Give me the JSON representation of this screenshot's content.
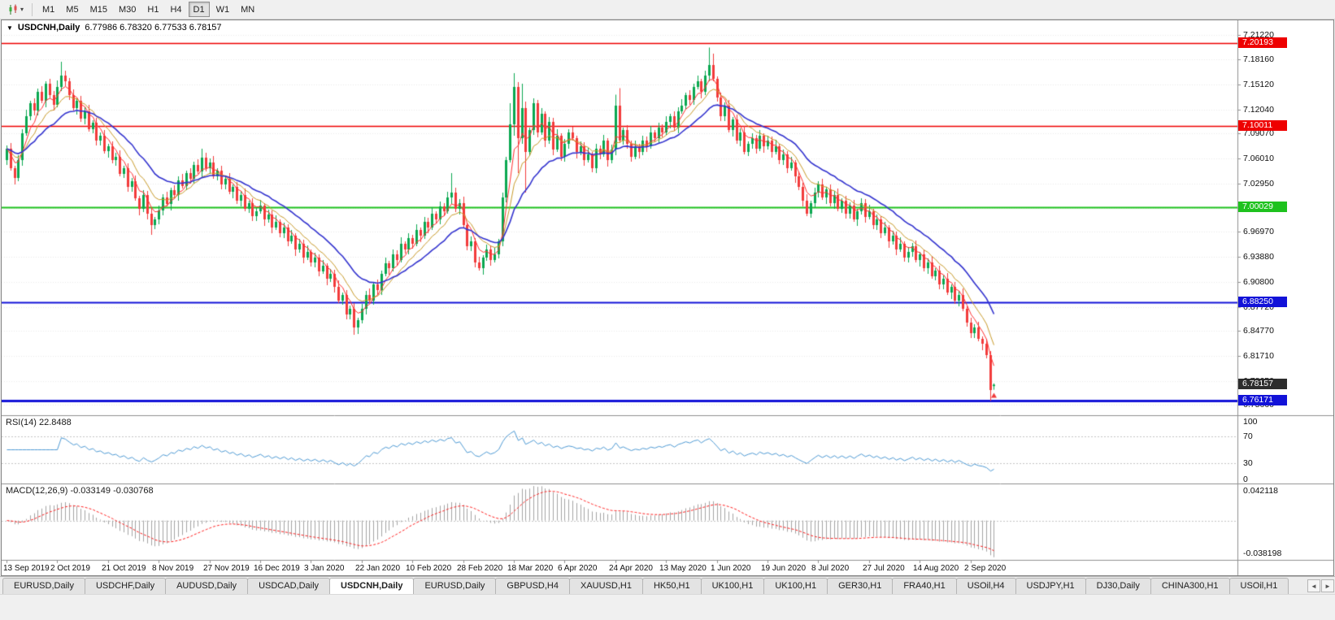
{
  "toolbar": {
    "dropdown_caret": "▾",
    "timeframes": [
      "M1",
      "M5",
      "M15",
      "M30",
      "H1",
      "H4",
      "D1",
      "W1",
      "MN"
    ],
    "active_timeframe": "D1"
  },
  "chart_header": {
    "caret": "▼",
    "symbol": "USDCNH,Daily",
    "ohlc_text": "6.77986 6.78320 6.77533 6.78157"
  },
  "rsi_panel": {
    "label": "RSI(14) 22.8488",
    "period": 14,
    "current_value": 22.8488,
    "scale_labels": [
      "100",
      "70",
      "30",
      "0"
    ],
    "level_lines": [
      70,
      30
    ],
    "line_color": "#4f9bd5"
  },
  "macd_panel": {
    "label": "MACD(12,26,9) -0.033149 -0.030768",
    "params": [
      12,
      26,
      9
    ],
    "values_text": "-0.033149 -0.030768",
    "scale_top": "0.042118",
    "scale_bottom": "-0.038198",
    "hist_color": "#a3a3a3",
    "signal_color": "#ff2020"
  },
  "tabs": {
    "items": [
      "EURUSD,Daily",
      "USDCHF,Daily",
      "AUDUSD,Daily",
      "USDCAD,Daily",
      "USDCNH,Daily",
      "EURUSD,Daily",
      "GBPUSD,H4",
      "XAUUSD,H1",
      "HK50,H1",
      "UK100,H1",
      "UK100,H1",
      "GER30,H1",
      "FRA40,H1",
      "USOil,H4",
      "USDJPY,H1",
      "DJ30,Daily",
      "CHINA300,H1",
      "USOil,H1"
    ],
    "active_index": 4,
    "scroll_left": "◄",
    "scroll_right": "►"
  },
  "chart_data": {
    "type": "candlestick",
    "symbol": "USDCNH",
    "timeframe": "Daily",
    "y_axis_labels": [
      "7.21220",
      "7.18160",
      "7.15120",
      "7.12040",
      "7.09070",
      "7.06010",
      "7.02950",
      "6.99890",
      "6.96970",
      "6.93880",
      "6.90800",
      "6.87720",
      "6.84770",
      "6.81710",
      "6.78650",
      "6.75660"
    ],
    "x_axis_labels": [
      "13 Sep 2019",
      "2 Oct 2019",
      "21 Oct 2019",
      "8 Nov 2019",
      "27 Nov 2019",
      "16 Dec 2019",
      "3 Jan 2020",
      "22 Jan 2020",
      "10 Feb 2020",
      "28 Feb 2020",
      "18 Mar 2020",
      "6 Apr 2020",
      "24 Apr 2020",
      "13 May 2020",
      "1 Jun 2020",
      "19 Jun 2020",
      "8 Jul 2020",
      "27 Jul 2020",
      "14 Aug 2020",
      "2 Sep 2020"
    ],
    "x_label_every_n_candles": 13,
    "y_range": [
      6.746,
      7.228
    ],
    "first_open": 7.058,
    "closes": [
      7.072,
      7.048,
      7.036,
      7.058,
      7.091,
      7.112,
      7.128,
      7.119,
      7.142,
      7.131,
      7.152,
      7.138,
      7.126,
      7.148,
      7.162,
      7.155,
      7.138,
      7.122,
      7.131,
      7.109,
      7.118,
      7.096,
      7.104,
      7.082,
      7.088,
      7.069,
      7.075,
      7.058,
      7.062,
      7.041,
      7.048,
      7.025,
      7.032,
      7.011,
      6.998,
      7.015,
      6.992,
      6.978,
      6.985,
      6.996,
      7.012,
      7.004,
      7.021,
      7.015,
      7.033,
      7.026,
      7.042,
      7.035,
      7.052,
      7.044,
      7.061,
      7.048,
      7.055,
      7.038,
      7.045,
      7.028,
      7.035,
      7.019,
      7.025,
      7.008,
      7.015,
      6.998,
      7.005,
      6.989,
      6.995,
      7.002,
      6.985,
      6.991,
      6.975,
      6.982,
      6.968,
      6.975,
      6.958,
      6.965,
      6.948,
      6.955,
      6.938,
      6.945,
      6.932,
      6.938,
      6.921,
      6.928,
      6.912,
      6.918,
      6.902,
      6.885,
      6.892,
      6.868,
      6.875,
      6.852,
      6.861,
      6.875,
      6.892,
      6.885,
      6.905,
      6.898,
      6.918,
      6.931,
      6.925,
      6.942,
      6.935,
      6.955,
      6.948,
      6.962,
      6.955,
      6.972,
      6.965,
      6.982,
      6.975,
      6.992,
      6.985,
      7.001,
      6.995,
      7.012,
      7.018,
      6.998,
      7.005,
      6.978,
      6.952,
      6.958,
      6.932,
      6.925,
      6.938,
      6.948,
      6.935,
      6.942,
      6.958,
      7.012,
      7.058,
      7.102,
      7.148,
      7.085,
      7.122,
      7.068,
      7.095,
      7.128,
      7.092,
      7.115,
      7.082,
      7.105,
      7.071,
      7.088,
      7.062,
      7.078,
      7.092,
      7.085,
      7.068,
      7.075,
      7.058,
      7.065,
      7.048,
      7.072,
      7.065,
      7.082,
      7.058,
      7.071,
      7.125,
      7.082,
      7.095,
      7.078,
      7.062,
      7.075,
      7.068,
      7.082,
      7.075,
      7.092,
      7.085,
      7.098,
      7.092,
      7.105,
      7.112,
      7.098,
      7.118,
      7.125,
      7.138,
      7.132,
      7.148,
      7.155,
      7.142,
      7.162,
      7.175,
      7.158,
      7.135,
      7.112,
      7.125,
      7.095,
      7.108,
      7.082,
      7.092,
      7.068,
      7.078,
      7.085,
      7.072,
      7.088,
      7.075,
      7.082,
      7.068,
      7.075,
      7.058,
      7.065,
      7.048,
      7.055,
      7.038,
      7.025,
      7.008,
      6.992,
      7.005,
      7.018,
      7.028,
      7.012,
      7.022,
      7.005,
      7.015,
      6.998,
      7.008,
      6.992,
      7.002,
      6.985,
      6.995,
      7.005,
      6.988,
      6.995,
      6.978,
      6.985,
      6.968,
      6.975,
      6.958,
      6.965,
      6.948,
      6.955,
      6.938,
      6.945,
      6.952,
      6.935,
      6.942,
      6.925,
      6.932,
      6.915,
      6.922,
      6.905,
      6.912,
      6.895,
      6.902,
      6.885,
      6.892,
      6.875,
      6.858,
      6.845,
      6.852,
      6.838,
      6.832,
      6.818,
      6.775,
      6.78157
    ],
    "wick_cycle": [
      [
        0.004,
        0.006
      ],
      [
        0.007,
        0.003
      ],
      [
        0.003,
        0.008
      ],
      [
        0.006,
        0.004
      ],
      [
        0.005,
        0.007
      ],
      [
        0.008,
        0.003
      ],
      [
        0.003,
        0.005
      ],
      [
        0.006,
        0.006
      ]
    ],
    "wick_overrides": {
      "14": {
        "h": 7.179
      },
      "37": {
        "l": 6.966
      },
      "50": {
        "h": 7.072
      },
      "89": {
        "l": 6.843
      },
      "114": {
        "h": 7.042
      },
      "129": {
        "h": 7.128
      },
      "130": {
        "h": 7.165,
        "l": 7.088
      },
      "131": {
        "l": 7.042
      },
      "132": {
        "h": 7.152
      },
      "133": {
        "l": 7.018
      },
      "156": {
        "h": 7.1385
      },
      "157": {
        "h": 7.1465
      },
      "180": {
        "h": 7.1965
      },
      "181": {
        "h": 7.189
      },
      "252": {
        "h": 6.823,
        "l": 6.7617
      },
      "253": {
        "o": 6.77986,
        "h": 6.7832,
        "l": 6.77533
      }
    },
    "last_candle_ohlc": {
      "open": 6.77986,
      "high": 6.7832,
      "low": 6.77533,
      "close": 6.78157
    },
    "current_price_label": "6.78157",
    "current_price_badge_color": "#2d2d2d",
    "horizontal_lines": [
      {
        "price": 7.20193,
        "label": "7.20193",
        "color": "#ee0000",
        "width": 1.4
      },
      {
        "price": 7.10011,
        "label": "7.10011",
        "color": "#ee0000",
        "width": 1.4
      },
      {
        "price": 7.00029,
        "label": "7.00029",
        "color": "#1ec21e",
        "width": 2
      },
      {
        "price": 6.8825,
        "label": "6.88250",
        "color": "#1212d8",
        "width": 2
      },
      {
        "price": 6.76171,
        "label": "6.76171",
        "color": "#1212d8",
        "width": 3
      }
    ],
    "moving_averages": [
      {
        "period": 5,
        "color": "#ff3030",
        "width": 1
      },
      {
        "period": 10,
        "color": "#c99b2a",
        "width": 1
      },
      {
        "period": 21,
        "color": "#3434cf",
        "width": 1.6
      }
    ],
    "candle_colors": {
      "up": "#0aa850",
      "down": "#f23b3b"
    },
    "grid_color": "#ebebeb",
    "marker": {
      "index": 253,
      "price": 6.7685,
      "color": "#f03b3b"
    }
  }
}
